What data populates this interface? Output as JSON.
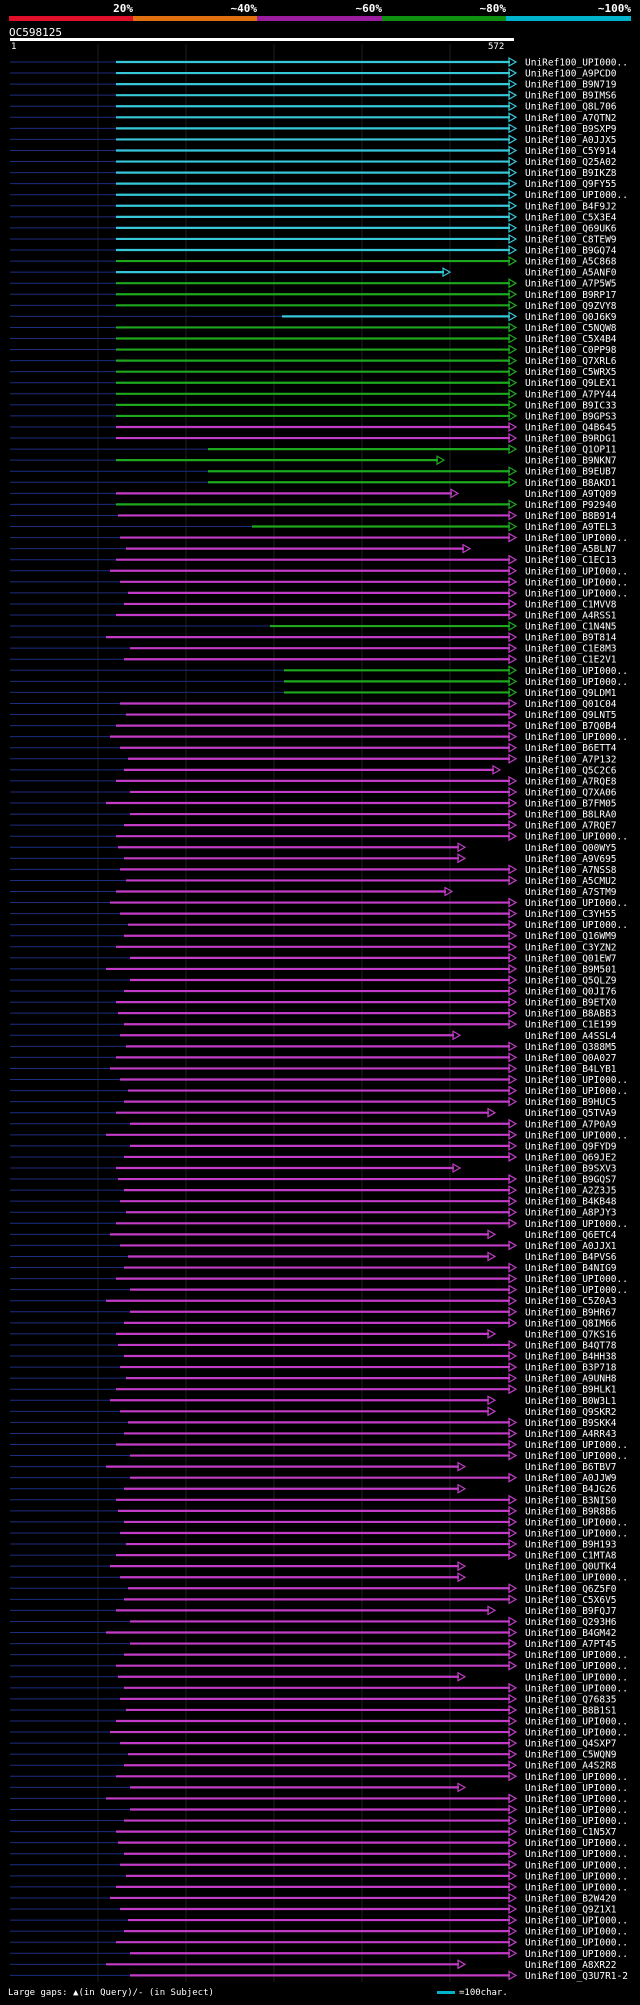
{
  "scale": {
    "labels": [
      "20%",
      "~40%",
      "~60%",
      "~80%",
      "~100%"
    ],
    "colors": [
      "#e0102a",
      "#e07010",
      "#9c1ca0",
      "#109010",
      "#00b3cc"
    ]
  },
  "query": {
    "id": "OC598125",
    "start": "1",
    "end": "572"
  },
  "colors": {
    "identity_100": "#36c7d8",
    "identity_80": "#1ea81e",
    "identity_60": "#c23cc8",
    "insert_marker": "#ffff66",
    "gap_line": "#ffffff"
  },
  "hits": [
    "UniRef100_UPI000..",
    "UniRef100_A9PCD0",
    "UniRef100_B9N719",
    "UniRef100_B9IMS6",
    "UniRef100_Q8L706",
    "UniRef100_A7QTN2",
    "UniRef100_B9SXP9",
    "UniRef100_A0JJX5",
    "UniRef100_C5Y914",
    "UniRef100_Q25A02",
    "UniRef100_B9IKZ8",
    "UniRef100_Q9FY55",
    "UniRef100_UPI000..",
    "UniRef100_B4F9J2",
    "UniRef100_C5X3E4",
    "UniRef100_Q69UK6",
    "UniRef100_C8TEW9",
    "UniRef100_B9GQ74",
    "UniRef100_A5C868",
    "UniRef100_A5ANF0",
    "UniRef100_A7P5W5",
    "UniRef100_B9RP17",
    "UniRef100_Q9ZVY8",
    "UniRef100_Q0J6K9",
    "UniRef100_C5NQW8",
    "UniRef100_C5X4B4",
    "UniRef100_C0PP98",
    "UniRef100_Q7XRL6",
    "UniRef100_C5WRX5",
    "UniRef100_Q9LEX1",
    "UniRef100_A7PY44",
    "UniRef100_B9IC33",
    "UniRef100_B9GPS3",
    "UniRef100_Q4B645",
    "UniRef100_B9RDG1",
    "UniRef100_Q1OP11",
    "UniRef100_B9NKN7",
    "UniRef100_B9EUB7",
    "UniRef100_B8AKD1",
    "UniRef100_A9TQ09",
    "UniRef100_P92940",
    "UniRef100_B8B914",
    "UniRef100_A9TEL3",
    "UniRef100_UPI000..",
    "UniRef100_A5BLN7",
    "UniRef100_C1EC13",
    "UniRef100_UPI000..",
    "UniRef100_UPI000..",
    "UniRef100_UPI000..",
    "UniRef100_C1MVV8",
    "UniRef100_A4RSS1",
    "UniRef100_C1N4N5",
    "UniRef100_B9T814",
    "UniRef100_C1E8M3",
    "UniRef100_C1E2V1",
    "UniRef100_UPI000..",
    "UniRef100_UPI000..",
    "UniRef100_Q9LDM1",
    "UniRef100_Q01C04",
    "UniRef100_Q9LNT5",
    "UniRef100_B7Q0B4",
    "UniRef100_UPI000..",
    "UniRef100_B6ETT4",
    "UniRef100_A7P132",
    "UniRef100_Q5C2C6",
    "UniRef100_A7RQE8",
    "UniRef100_Q7XA06",
    "UniRef100_B7FM05",
    "UniRef100_B8LRA0",
    "UniRef100_A7RQE7",
    "UniRef100_UPI000..",
    "UniRef100_Q00WY5",
    "UniRef100_A9V695",
    "UniRef100_A7NSS8",
    "UniRef100_A5CMU2",
    "UniRef100_A7STM9",
    "UniRef100_UPI000..",
    "UniRef100_C3YH55",
    "UniRef100_UPI000..",
    "UniRef100_Q16WM9",
    "UniRef100_C3YZN2",
    "UniRef100_Q01EW7",
    "UniRef100_B9M501",
    "UniRef100_Q5QLZ9",
    "UniRef100_Q0JI76",
    "UniRef100_B9ETX0",
    "UniRef100_B8ABB3",
    "UniRef100_C1E199",
    "UniRef100_A4SSL4",
    "UniRef100_Q388M5",
    "UniRef100_Q0A027",
    "UniRef100_B4LYB1",
    "UniRef100_UPI000..",
    "UniRef100_UPI000..",
    "UniRef100_B9HUC5",
    "UniRef100_Q5TVA9",
    "UniRef100_A7P0A9",
    "UniRef100_UPI000..",
    "UniRef100_Q9FYD9",
    "UniRef100_Q69JE2",
    "UniRef100_B9SXV3",
    "UniRef100_B9GQS7",
    "UniRef100_A2Z3J5",
    "UniRef100_B4KB48",
    "UniRef100_A8PJY3",
    "UniRef100_UPI000..",
    "UniRef100_Q6ETC4",
    "UniRef100_A0JJX1",
    "UniRef100_B4PVS6",
    "UniRef100_B4NIG9",
    "UniRef100_UPI000..",
    "UniRef100_UPI000..",
    "UniRef100_C5Z0A3",
    "UniRef100_B9HR67",
    "UniRef100_Q8IM66",
    "UniRef100_Q7KS16",
    "UniRef100_B4QT78",
    "UniRef100_B4HH38",
    "UniRef100_B3P718",
    "UniRef100_A9UNH8",
    "UniRef100_B9HLK1",
    "UniRef100_B0W3L1",
    "UniRef100_Q9SKR2",
    "UniRef100_B9SKK4",
    "UniRef100_A4RR43",
    "UniRef100_UPI000..",
    "UniRef100_UPI000..",
    "UniRef100_B6TBV7",
    "UniRef100_A0JJW9",
    "UniRef100_B4JG26",
    "UniRef100_B3NIS0",
    "UniRef100_B9R8B6",
    "UniRef100_UPI000..",
    "UniRef100_UPI000..",
    "UniRef100_B9H193",
    "UniRef100_C1MTA8",
    "UniRef100_Q0UTK4",
    "UniRef100_UPI000..",
    "UniRef100_Q6Z5F0",
    "UniRef100_C5X6V5",
    "UniRef100_B9FQJ7",
    "UniRef100_Q293H6",
    "UniRef100_B4GM42",
    "UniRef100_A7PT45",
    "UniRef100_UPI000..",
    "UniRef100_UPI000..",
    "UniRef100_UPI000..",
    "UniRef100_UPI000..",
    "UniRef100_Q76835",
    "UniRef100_B8B1S1",
    "UniRef100_UPI000..",
    "UniRef100_UPI000..",
    "UniRef100_Q4SXP7",
    "UniRef100_C5WQN9",
    "UniRef100_A4S2R8",
    "UniRef100_UPI000..",
    "UniRef100_UPI000..",
    "UniRef100_UPI000..",
    "UniRef100_UPI000..",
    "UniRef100_UPI000..",
    "UniRef100_C1N5X7",
    "UniRef100_UPI000..",
    "UniRef100_UPI000..",
    "UniRef100_UPI000..",
    "UniRef100_UPI000..",
    "UniRef100_UPI000..",
    "UniRef100_B2W420",
    "UniRef100_Q9Z1X1",
    "UniRef100_UPI000..",
    "UniRef100_UPI000..",
    "UniRef100_UPI000..",
    "UniRef100_UPI000..",
    "UniRef100_A8XR22",
    "UniRef100_Q3U7R1-2"
  ],
  "footer": {
    "gaps_text": "Large gaps: ▲(in Query)/- (in Subject)",
    "legend_text": "=100char."
  }
}
